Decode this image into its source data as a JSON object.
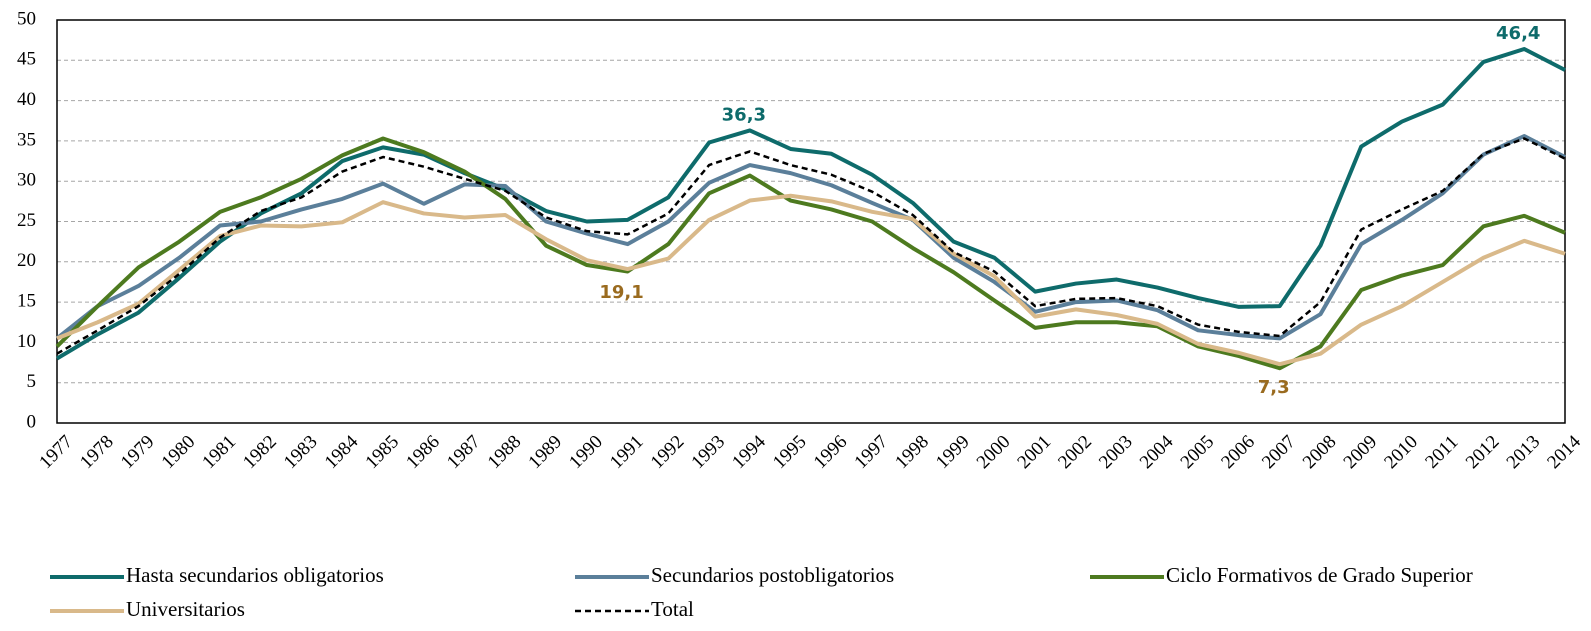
{
  "chart_data": {
    "type": "line",
    "categories": [
      "1977",
      "1978",
      "1979",
      "1980",
      "1981",
      "1982",
      "1983",
      "1984",
      "1985",
      "1986",
      "1987",
      "1988",
      "1989",
      "1990",
      "1991",
      "1992",
      "1993",
      "1994",
      "1995",
      "1996",
      "1997",
      "1998",
      "1999",
      "2000",
      "2001",
      "2002",
      "2003",
      "2004",
      "2005",
      "2006",
      "2007",
      "2008",
      "2009",
      "2010",
      "2011",
      "2012",
      "2013",
      "2014"
    ],
    "ylim": [
      0,
      50
    ],
    "yticks": [
      0,
      5,
      10,
      15,
      20,
      25,
      30,
      35,
      40,
      45,
      50
    ],
    "grid": true,
    "series": [
      {
        "name": "Hasta secundarios obligatorios",
        "color": "#0e6b6b",
        "label_color": "#0e6b6b",
        "values": [
          8,
          11,
          13.7,
          18,
          22.5,
          26,
          28.5,
          32.5,
          34.2,
          33.3,
          31,
          29,
          26.3,
          25,
          25.2,
          28,
          34.8,
          36.3,
          34,
          33.4,
          30.8,
          27.3,
          22.5,
          20.5,
          16.3,
          17.3,
          17.8,
          16.8,
          15.5,
          14.4,
          14.5,
          22,
          34.3,
          37.4,
          39.5,
          44.8,
          46.4,
          43.8
        ],
        "value_labels": [
          null,
          null,
          null,
          null,
          null,
          null,
          null,
          null,
          null,
          null,
          null,
          null,
          null,
          null,
          null,
          null,
          null,
          "36,3",
          null,
          null,
          null,
          null,
          null,
          null,
          null,
          null,
          null,
          null,
          null,
          null,
          null,
          null,
          null,
          null,
          null,
          null,
          "46,4",
          null
        ]
      },
      {
        "name": "Secundarios postobligatorios",
        "color": "#5b7f9a",
        "values": [
          10.5,
          14.5,
          17,
          20.5,
          24.5,
          25,
          26.5,
          27.8,
          29.7,
          27.2,
          29.6,
          29.4,
          25,
          23.5,
          22.2,
          25,
          29.8,
          32,
          31,
          29.5,
          27.3,
          25.2,
          20.5,
          17.5,
          13.8,
          15,
          15.2,
          14,
          11.5,
          10.9,
          10.5,
          13.5,
          22.2,
          25.2,
          28.5,
          33.3,
          35.6,
          33
        ]
      },
      {
        "name": "Ciclo Formativos de Grado Superior",
        "color": "#4d7a1f",
        "values": [
          9.5,
          14.5,
          19.3,
          22.5,
          26.2,
          28,
          30.3,
          33.2,
          35.3,
          33.6,
          31.2,
          27.8,
          22,
          19.6,
          18.8,
          22.2,
          28.5,
          30.7,
          27.6,
          26.5,
          25,
          21.7,
          18.7,
          15.2,
          11.8,
          12.5,
          12.5,
          12,
          9.5,
          8.3,
          6.8,
          9.5,
          16.5,
          18.3,
          19.6,
          24.4,
          25.7,
          23.6
        ]
      },
      {
        "name": "Universitarios",
        "color": "#d9b98a",
        "label_color": "#9a6b1f",
        "values": [
          10.5,
          12.5,
          14.8,
          19,
          23.2,
          24.5,
          24.4,
          24.9,
          27.4,
          26,
          25.5,
          25.8,
          22.8,
          20.2,
          19.1,
          20.4,
          25.2,
          27.6,
          28.2,
          27.5,
          26.2,
          25.3,
          21,
          18.2,
          13.2,
          14.1,
          13.4,
          12.3,
          9.8,
          8.7,
          7.3,
          8.6,
          12.2,
          14.5,
          17.5,
          20.5,
          22.6,
          21
        ],
        "value_labels": [
          null,
          null,
          null,
          null,
          null,
          null,
          null,
          null,
          null,
          null,
          null,
          null,
          null,
          null,
          "19,1",
          null,
          null,
          null,
          null,
          null,
          null,
          null,
          null,
          null,
          null,
          null,
          null,
          null,
          null,
          null,
          "7,3",
          null,
          null,
          null,
          null,
          null,
          null,
          null
        ]
      },
      {
        "name": "Total",
        "color": "#000000",
        "dashed": true,
        "values": [
          8.6,
          11.5,
          14.5,
          18.5,
          23,
          26.3,
          28,
          31.2,
          33,
          31.8,
          30.3,
          28.8,
          25.5,
          23.8,
          23.4,
          26,
          32,
          33.7,
          32,
          30.8,
          28.7,
          25.8,
          21.2,
          18.8,
          14.5,
          15.4,
          15.5,
          14.5,
          12.2,
          11.3,
          10.8,
          15,
          24,
          26.5,
          28.8,
          33.4,
          35.3,
          32.8
        ]
      }
    ]
  }
}
